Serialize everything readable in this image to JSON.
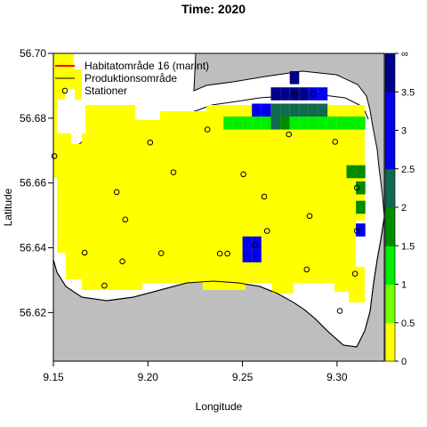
{
  "chart_data": {
    "type": "heatmap",
    "title": "Time: 2020",
    "xlabel": "Longitude",
    "ylabel": "Latitude",
    "xlim": [
      9.15,
      9.325
    ],
    "ylim": [
      56.605,
      56.7
    ],
    "x_ticks": [
      "9.15",
      "9.20",
      "9.25",
      "9.30"
    ],
    "y_ticks": [
      "56.62",
      "56.64",
      "56.66",
      "56.68",
      "56.70"
    ],
    "legend": {
      "position": "top-left",
      "entries": [
        {
          "label": "Habitatområde 16 (marint)",
          "symbol": "line",
          "color": "#ff0000"
        },
        {
          "label": "Produktionsområde",
          "symbol": "line",
          "color": "#000000"
        },
        {
          "label": "Stationer",
          "symbol": "circle",
          "color": "#000000"
        }
      ]
    },
    "colorbar": {
      "tick_labels": [
        "0",
        "0.5",
        "1",
        "1.5",
        "2",
        "2.5",
        "3",
        "3.5",
        "∞"
      ],
      "bins": [
        {
          "range": [
            0,
            0.5
          ],
          "color": "#ffff00"
        },
        {
          "range": [
            0.5,
            1
          ],
          "color": "#77ff00"
        },
        {
          "range": [
            1,
            1.5
          ],
          "color": "#00ee00"
        },
        {
          "range": [
            1.5,
            2
          ],
          "color": "#008b00"
        },
        {
          "range": [
            2,
            2.5
          ],
          "color": "#106a50"
        },
        {
          "range": [
            2.5,
            3
          ],
          "color": "#0000ee"
        },
        {
          "range": [
            3,
            3.5
          ],
          "color": "#0000ee"
        },
        {
          "range": [
            3.5,
            "inf"
          ],
          "color": "#00008b"
        }
      ]
    },
    "colors": {
      "land": "#bebebe",
      "water": "#ffffff"
    },
    "cells": [
      {
        "lon": 9.2775,
        "lat": 56.6925,
        "value": 3.8
      },
      {
        "lon": 9.2675,
        "lat": 56.6875,
        "value": 3.8
      },
      {
        "lon": 9.2725,
        "lat": 56.6875,
        "value": 3.8
      },
      {
        "lon": 9.2775,
        "lat": 56.6875,
        "value": 3.8
      },
      {
        "lon": 9.2825,
        "lat": 56.6875,
        "value": 3.8
      },
      {
        "lon": 9.2875,
        "lat": 56.6875,
        "value": 3.2
      },
      {
        "lon": 9.2925,
        "lat": 56.6875,
        "value": 3.2
      },
      {
        "lon": 9.2575,
        "lat": 56.6825,
        "value": 3.2
      },
      {
        "lon": 9.2625,
        "lat": 56.6825,
        "value": 3.2
      },
      {
        "lon": 9.2675,
        "lat": 56.6825,
        "value": 2.2
      },
      {
        "lon": 9.2725,
        "lat": 56.6825,
        "value": 2.2
      },
      {
        "lon": 9.2775,
        "lat": 56.6825,
        "value": 2.2
      },
      {
        "lon": 9.2825,
        "lat": 56.6825,
        "value": 2.2
      },
      {
        "lon": 9.2875,
        "lat": 56.6825,
        "value": 2.2
      },
      {
        "lon": 9.2925,
        "lat": 56.6825,
        "value": 2.2
      },
      {
        "lon": 9.2425,
        "lat": 56.6785,
        "value": 1.2
      },
      {
        "lon": 9.2475,
        "lat": 56.6785,
        "value": 1.2
      },
      {
        "lon": 9.2525,
        "lat": 56.6785,
        "value": 1.2
      },
      {
        "lon": 9.2575,
        "lat": 56.6785,
        "value": 1.2
      },
      {
        "lon": 9.2625,
        "lat": 56.6785,
        "value": 1.2
      },
      {
        "lon": 9.2675,
        "lat": 56.6785,
        "value": 2.2
      },
      {
        "lon": 9.2725,
        "lat": 56.6785,
        "value": 1.7
      },
      {
        "lon": 9.2775,
        "lat": 56.6785,
        "value": 1.2
      },
      {
        "lon": 9.2825,
        "lat": 56.6785,
        "value": 1.2
      },
      {
        "lon": 9.2875,
        "lat": 56.6785,
        "value": 1.2
      },
      {
        "lon": 9.2925,
        "lat": 56.6785,
        "value": 1.2
      },
      {
        "lon": 9.2975,
        "lat": 56.6785,
        "value": 1.2
      },
      {
        "lon": 9.3025,
        "lat": 56.6785,
        "value": 1.2
      },
      {
        "lon": 9.3075,
        "lat": 56.6785,
        "value": 1.2
      },
      {
        "lon": 9.3125,
        "lat": 56.6785,
        "value": 1.2
      },
      {
        "lon": 9.3075,
        "lat": 56.6635,
        "value": 1.7
      },
      {
        "lon": 9.3125,
        "lat": 56.6635,
        "value": 1.7
      },
      {
        "lon": 9.3125,
        "lat": 56.6585,
        "value": 1.7
      },
      {
        "lon": 9.3125,
        "lat": 56.6525,
        "value": 1.7
      },
      {
        "lon": 9.3125,
        "lat": 56.6455,
        "value": 2.6
      },
      {
        "lon": 9.2575,
        "lat": 56.6415,
        "value": 2.7
      },
      {
        "lon": 9.2525,
        "lat": 56.6415,
        "value": 2.7
      },
      {
        "lon": 9.2575,
        "lat": 56.6375,
        "value": 2.7
      },
      {
        "lon": 9.2525,
        "lat": 56.6375,
        "value": 2.7
      }
    ],
    "stations": [
      {
        "lon": 9.2775,
        "lat": 56.6875
      },
      {
        "lon": 9.2875,
        "lat": 56.6875
      },
      {
        "lon": 9.2315,
        "lat": 56.6765
      },
      {
        "lon": 9.2745,
        "lat": 56.675
      },
      {
        "lon": 9.2012,
        "lat": 56.6725
      },
      {
        "lon": 9.299,
        "lat": 56.6727
      },
      {
        "lon": 9.1505,
        "lat": 56.6683
      },
      {
        "lon": 9.2135,
        "lat": 56.6633
      },
      {
        "lon": 9.2505,
        "lat": 56.6627
      },
      {
        "lon": 9.1835,
        "lat": 56.6572
      },
      {
        "lon": 9.3105,
        "lat": 56.6585
      },
      {
        "lon": 9.2615,
        "lat": 56.6558
      },
      {
        "lon": 9.188,
        "lat": 56.6487
      },
      {
        "lon": 9.2855,
        "lat": 56.6498
      },
      {
        "lon": 9.263,
        "lat": 56.6452
      },
      {
        "lon": 9.3105,
        "lat": 56.6452
      },
      {
        "lon": 9.2565,
        "lat": 56.6408
      },
      {
        "lon": 9.1665,
        "lat": 56.6385
      },
      {
        "lon": 9.207,
        "lat": 56.6383
      },
      {
        "lon": 9.238,
        "lat": 56.6382
      },
      {
        "lon": 9.242,
        "lat": 56.6382
      },
      {
        "lon": 9.1865,
        "lat": 56.6358
      },
      {
        "lon": 9.284,
        "lat": 56.6333
      },
      {
        "lon": 9.3095,
        "lat": 56.632
      },
      {
        "lon": 9.177,
        "lat": 56.6283
      },
      {
        "lon": 9.3015,
        "lat": 56.6205
      }
    ]
  }
}
